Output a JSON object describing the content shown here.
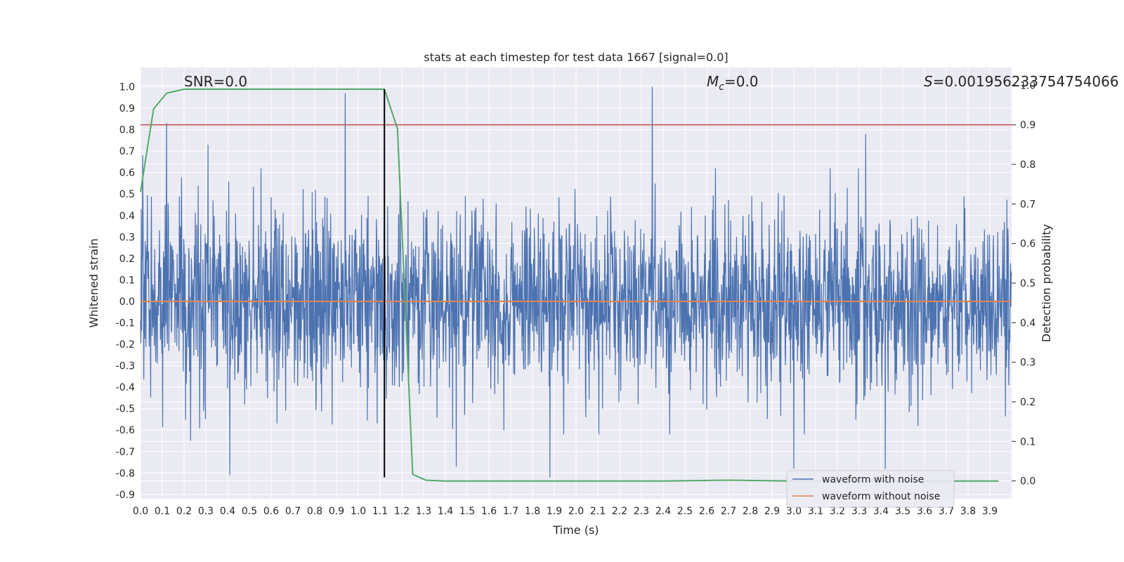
{
  "chart_data": {
    "type": "line",
    "title": "stats at each timestep for test data 1667 [signal=0.0]",
    "xlabel": "Time (s)",
    "ylabel": "Whitened strain",
    "y2label": "Detection probability",
    "xlim": [
      0.0,
      4.0
    ],
    "ylim": [
      -0.92,
      1.09
    ],
    "y2lim": [
      -0.045,
      1.045
    ],
    "x_ticks": [
      "0.0",
      "0.1",
      "0.2",
      "0.3",
      "0.4",
      "0.5",
      "0.6",
      "0.7",
      "0.8",
      "0.9",
      "1.0",
      "1.1",
      "1.2",
      "1.3",
      "1.4",
      "1.5",
      "1.6",
      "1.7",
      "1.8",
      "1.9",
      "2.0",
      "2.1",
      "2.2",
      "2.3",
      "2.4",
      "2.5",
      "2.6",
      "2.7",
      "2.8",
      "2.9",
      "3.0",
      "3.1",
      "3.2",
      "3.3",
      "3.4",
      "3.5",
      "3.6",
      "3.7",
      "3.8",
      "3.9"
    ],
    "y_ticks": [
      "1.0",
      "0.9",
      "0.8",
      "0.7",
      "0.6",
      "0.5",
      "0.4",
      "0.3",
      "0.2",
      "0.1",
      "0.0",
      "-0.1",
      "-0.2",
      "-0.3",
      "-0.4",
      "-0.5",
      "-0.6",
      "-0.7",
      "-0.8",
      "-0.9"
    ],
    "y2_ticks": [
      "1.0",
      "0.9",
      "0.8",
      "0.7",
      "0.6",
      "0.5",
      "0.4",
      "0.3",
      "0.2",
      "0.1",
      "0.0"
    ],
    "grid": true,
    "legend_position": "lower-right",
    "annotations": {
      "snr": "SNR=0.0",
      "mc_symbol": "M",
      "mc_sub": "c",
      "mc_value": "=0.0",
      "s_symbol": "S",
      "s_value": "=0.001956233754754066"
    },
    "series": [
      {
        "name": "waveform with noise",
        "color": "#4c72b0",
        "axis": "left",
        "description_note": "dense whitened noise, mostly within -0.5..0.5",
        "peaks": [
          {
            "x": 0.01,
            "y": 0.68
          },
          {
            "x": 0.12,
            "y": 0.83
          },
          {
            "x": 0.31,
            "y": 0.73
          },
          {
            "x": 0.41,
            "y": -0.81
          },
          {
            "x": 0.94,
            "y": 0.97
          },
          {
            "x": 2.35,
            "y": 1.0
          },
          {
            "x": 1.88,
            "y": -0.82
          },
          {
            "x": 3.33,
            "y": 0.78
          },
          {
            "x": 3.0,
            "y": -0.78
          },
          {
            "x": 3.42,
            "y": -0.78
          },
          {
            "x": 1.45,
            "y": -0.77
          },
          {
            "x": 0.23,
            "y": -0.65
          }
        ]
      },
      {
        "name": "waveform without noise",
        "color": "#dd8452",
        "axis": "left",
        "values_constant": 0.0
      },
      {
        "name": "detection probability",
        "color": "#55a868",
        "axis": "right",
        "x": [
          0.0,
          0.06,
          0.12,
          0.2,
          0.4,
          0.6,
          0.8,
          1.0,
          1.06,
          1.12,
          1.18,
          1.25,
          1.31,
          1.4,
          1.6,
          2.0,
          2.4,
          2.7,
          3.0,
          3.5,
          3.94
        ],
        "y": [
          0.73,
          0.94,
          0.98,
          0.99,
          0.99,
          0.99,
          0.99,
          0.99,
          0.99,
          0.99,
          0.89,
          0.017,
          0.002,
          0.0,
          0.0,
          0.0,
          0.0,
          0.002,
          0.0,
          0.0,
          0.0
        ]
      }
    ],
    "threshold": {
      "axis": "right",
      "value": 0.9,
      "color": "#c44e52"
    },
    "marker_time": {
      "x": 1.12,
      "y_from": -0.82,
      "y_to": 0.99,
      "color": "#000000"
    },
    "legend": [
      "waveform with noise",
      "waveform without noise"
    ],
    "colors": {
      "plot_bg": "#eaeaf2",
      "grid": "#ffffff",
      "noise": "#4c72b0",
      "clean": "#dd8452",
      "prob": "#55a868",
      "threshold": "#c44e52",
      "marker": "#000000"
    }
  }
}
